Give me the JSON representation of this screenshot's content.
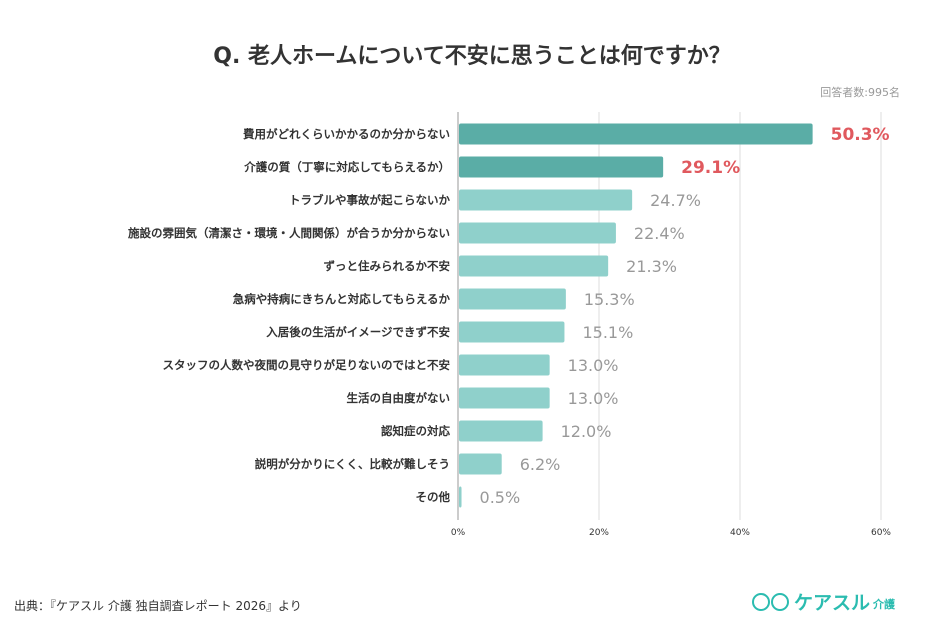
{
  "chart_data": {
    "type": "bar",
    "orientation": "horizontal",
    "title": "Q. 老人ホームについて不安に思うことは何ですか？",
    "subtitle": "回答者数:995名",
    "categories": [
      "費用がどれくらいかかるのか分からない",
      "介護の質（丁寧に対応してもらえるか）",
      "トラブルや事故が起こらないか",
      "施設の雰囲気（清潔さ・環境・人間関係）が合うか分からない",
      "ずっと住みられるか不安",
      "急病や持病にきちんと対応してもらえるか",
      "入居後の生活がイメージできず不安",
      "スタッフの人数や夜間の見守りが足りないのではと不安",
      "生活の自由度がない",
      "認知症の対応",
      "説明が分かりにくく、比較が難しそう",
      "その他"
    ],
    "values": [
      50.3,
      29.1,
      24.7,
      22.4,
      21.3,
      15.3,
      15.1,
      13.0,
      13.0,
      12.0,
      6.2,
      0.5
    ],
    "value_labels": [
      "50.3%",
      "29.1%",
      "24.7%",
      "22.4%",
      "21.3%",
      "15.3%",
      "15.1%",
      "13.0%",
      "13.0%",
      "12.0%",
      "6.2%",
      "0.5%"
    ],
    "xlim": [
      0,
      60
    ],
    "xticks": [
      "0%",
      "20%",
      "40%",
      "60%"
    ],
    "grid": true,
    "colors": {
      "highlight_bar": "#5aada6",
      "bar": "#8fd0cb",
      "highlight_label": "#e0595e",
      "label": "#999999"
    },
    "highlight_count": 2
  },
  "footer": {
    "source": "出典：『ケアスル 介護 独自調査レポート 2026』より",
    "logo_main": "ケアスル",
    "logo_sub": "介護"
  }
}
